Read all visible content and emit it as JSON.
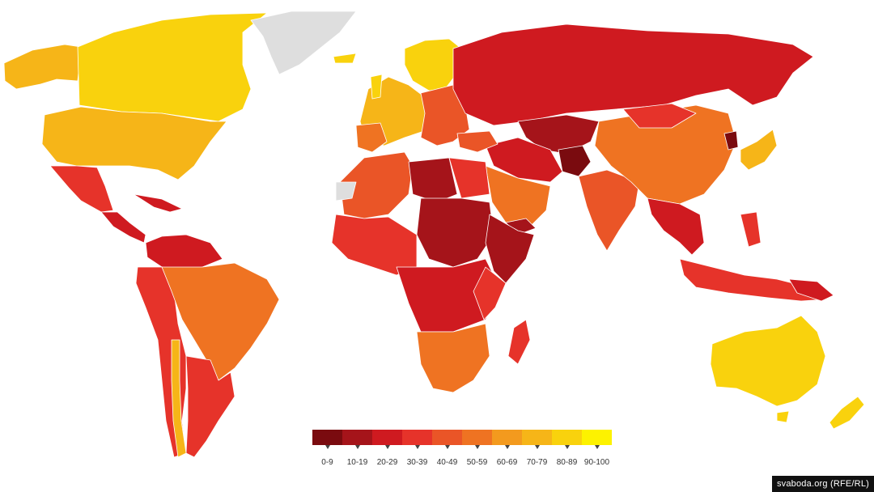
{
  "legend": {
    "bins": [
      {
        "label": "0-9",
        "color": "#7a0b0f"
      },
      {
        "label": "10-19",
        "color": "#a5141a"
      },
      {
        "label": "20-29",
        "color": "#cf1a20"
      },
      {
        "label": "30-39",
        "color": "#e6332a"
      },
      {
        "label": "40-49",
        "color": "#ea5527"
      },
      {
        "label": "50-59",
        "color": "#ef7322"
      },
      {
        "label": "60-69",
        "color": "#f39a1e"
      },
      {
        "label": "70-79",
        "color": "#f6b518"
      },
      {
        "label": "80-89",
        "color": "#f9d20d"
      },
      {
        "label": "90-100",
        "color": "#fdf200"
      }
    ]
  },
  "source": "svaboda.org (RFE/RL)",
  "no_data_color": "#dedede"
}
